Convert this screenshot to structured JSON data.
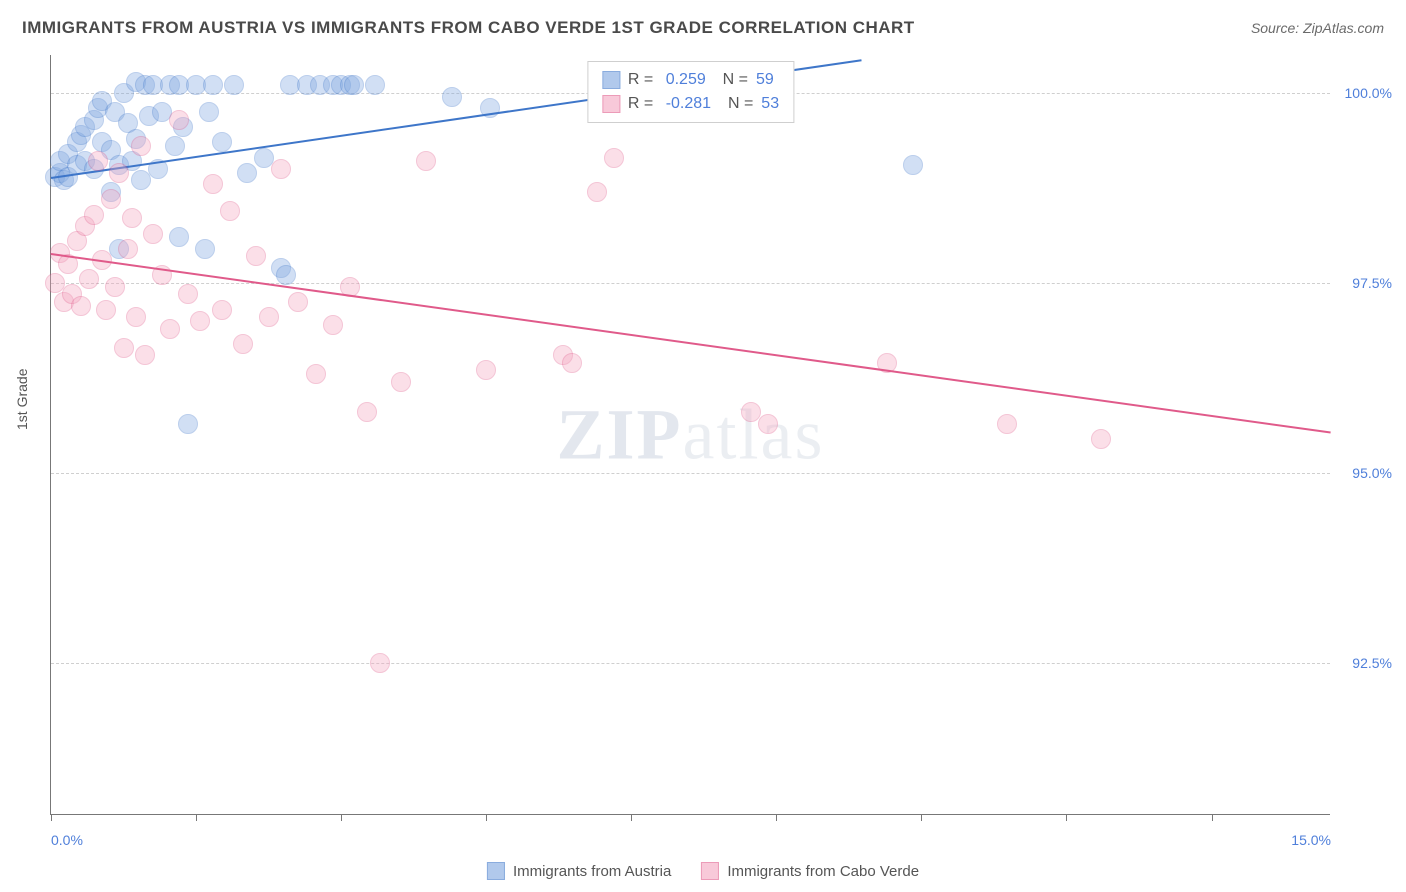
{
  "header": {
    "title": "IMMIGRANTS FROM AUSTRIA VS IMMIGRANTS FROM CABO VERDE 1ST GRADE CORRELATION CHART",
    "source": "Source: ZipAtlas.com"
  },
  "chart": {
    "type": "scatter",
    "ylabel": "1st Grade",
    "watermark_bold": "ZIP",
    "watermark_rest": "atlas",
    "background_color": "#ffffff",
    "grid_color": "#cfcfcf",
    "axis_color": "#777777",
    "xlim": [
      0,
      15
    ],
    "ylim": [
      90.5,
      100.5
    ],
    "xticks": [
      0,
      1.7,
      3.4,
      5.1,
      6.8,
      8.5,
      10.2,
      11.9,
      13.6
    ],
    "xtick_labels_visible": {
      "0": "0.0%",
      "15": "15.0%"
    },
    "yticks": [
      92.5,
      95.0,
      97.5,
      100.0
    ],
    "ytick_labels": [
      "92.5%",
      "95.0%",
      "97.5%",
      "100.0%"
    ],
    "marker_radius": 10,
    "fill_opacity": 0.35,
    "series": [
      {
        "name": "Immigrants from Austria",
        "color_fill": "#7ea6e0",
        "color_stroke": "#3e76c9",
        "R": "0.259",
        "N": "59",
        "trend": {
          "x1": 0,
          "y1": 98.9,
          "x2": 9.5,
          "y2": 100.45
        },
        "points": [
          [
            0.05,
            98.9
          ],
          [
            0.1,
            98.95
          ],
          [
            0.1,
            99.1
          ],
          [
            0.15,
            98.85
          ],
          [
            0.2,
            99.2
          ],
          [
            0.2,
            98.9
          ],
          [
            0.3,
            99.35
          ],
          [
            0.3,
            99.05
          ],
          [
            0.35,
            99.45
          ],
          [
            0.4,
            99.1
          ],
          [
            0.4,
            99.55
          ],
          [
            0.5,
            99.65
          ],
          [
            0.5,
            99.0
          ],
          [
            0.55,
            99.8
          ],
          [
            0.6,
            99.35
          ],
          [
            0.6,
            99.9
          ],
          [
            0.7,
            99.25
          ],
          [
            0.7,
            98.7
          ],
          [
            0.75,
            99.75
          ],
          [
            0.8,
            99.05
          ],
          [
            0.8,
            97.95
          ],
          [
            0.85,
            100.0
          ],
          [
            0.9,
            99.6
          ],
          [
            0.95,
            99.1
          ],
          [
            1.0,
            100.15
          ],
          [
            1.0,
            99.4
          ],
          [
            1.05,
            98.85
          ],
          [
            1.1,
            100.1
          ],
          [
            1.15,
            99.7
          ],
          [
            1.2,
            100.1
          ],
          [
            1.25,
            99.0
          ],
          [
            1.3,
            99.75
          ],
          [
            1.4,
            100.1
          ],
          [
            1.45,
            99.3
          ],
          [
            1.5,
            98.1
          ],
          [
            1.5,
            100.1
          ],
          [
            1.55,
            99.55
          ],
          [
            1.6,
            95.65
          ],
          [
            1.7,
            100.1
          ],
          [
            1.8,
            97.95
          ],
          [
            1.85,
            99.75
          ],
          [
            1.9,
            100.1
          ],
          [
            2.0,
            99.35
          ],
          [
            2.15,
            100.1
          ],
          [
            2.3,
            98.95
          ],
          [
            2.5,
            99.15
          ],
          [
            2.7,
            97.7
          ],
          [
            2.75,
            97.6
          ],
          [
            2.8,
            100.1
          ],
          [
            3.0,
            100.1
          ],
          [
            3.15,
            100.1
          ],
          [
            3.3,
            100.1
          ],
          [
            3.4,
            100.1
          ],
          [
            3.5,
            100.1
          ],
          [
            3.55,
            100.1
          ],
          [
            3.8,
            100.1
          ],
          [
            4.7,
            99.95
          ],
          [
            5.15,
            99.8
          ],
          [
            10.1,
            99.05
          ]
        ]
      },
      {
        "name": "Immigrants from Cabo Verde",
        "color_fill": "#f4a6c0",
        "color_stroke": "#e05a8a",
        "R": "-0.281",
        "N": "53",
        "trend": {
          "x1": 0,
          "y1": 97.9,
          "x2": 15,
          "y2": 95.55
        },
        "points": [
          [
            0.05,
            97.5
          ],
          [
            0.1,
            97.9
          ],
          [
            0.15,
            97.25
          ],
          [
            0.2,
            97.75
          ],
          [
            0.25,
            97.35
          ],
          [
            0.3,
            98.05
          ],
          [
            0.35,
            97.2
          ],
          [
            0.4,
            98.25
          ],
          [
            0.45,
            97.55
          ],
          [
            0.5,
            98.4
          ],
          [
            0.55,
            99.1
          ],
          [
            0.6,
            97.8
          ],
          [
            0.65,
            97.15
          ],
          [
            0.7,
            98.6
          ],
          [
            0.75,
            97.45
          ],
          [
            0.8,
            98.95
          ],
          [
            0.85,
            96.65
          ],
          [
            0.9,
            97.95
          ],
          [
            0.95,
            98.35
          ],
          [
            1.0,
            97.05
          ],
          [
            1.05,
            99.3
          ],
          [
            1.1,
            96.55
          ],
          [
            1.2,
            98.15
          ],
          [
            1.3,
            97.6
          ],
          [
            1.4,
            96.9
          ],
          [
            1.5,
            99.65
          ],
          [
            1.6,
            97.35
          ],
          [
            1.75,
            97.0
          ],
          [
            1.9,
            98.8
          ],
          [
            2.0,
            97.15
          ],
          [
            2.1,
            98.45
          ],
          [
            2.25,
            96.7
          ],
          [
            2.4,
            97.85
          ],
          [
            2.55,
            97.05
          ],
          [
            2.7,
            99.0
          ],
          [
            2.9,
            97.25
          ],
          [
            3.1,
            96.3
          ],
          [
            3.3,
            96.95
          ],
          [
            3.5,
            97.45
          ],
          [
            3.7,
            95.8
          ],
          [
            3.85,
            92.5
          ],
          [
            4.1,
            96.2
          ],
          [
            4.4,
            99.1
          ],
          [
            5.1,
            96.35
          ],
          [
            6.0,
            96.55
          ],
          [
            6.1,
            96.45
          ],
          [
            6.4,
            98.7
          ],
          [
            6.6,
            99.15
          ],
          [
            8.2,
            95.8
          ],
          [
            8.4,
            95.65
          ],
          [
            9.8,
            96.45
          ],
          [
            11.2,
            95.65
          ],
          [
            12.3,
            95.45
          ]
        ]
      }
    ],
    "bottom_legend": [
      {
        "label": "Immigrants from Austria",
        "fill": "#7ea6e0",
        "stroke": "#3e76c9"
      },
      {
        "label": "Immigrants from Cabo Verde",
        "fill": "#f4a6c0",
        "stroke": "#e05a8a"
      }
    ]
  }
}
